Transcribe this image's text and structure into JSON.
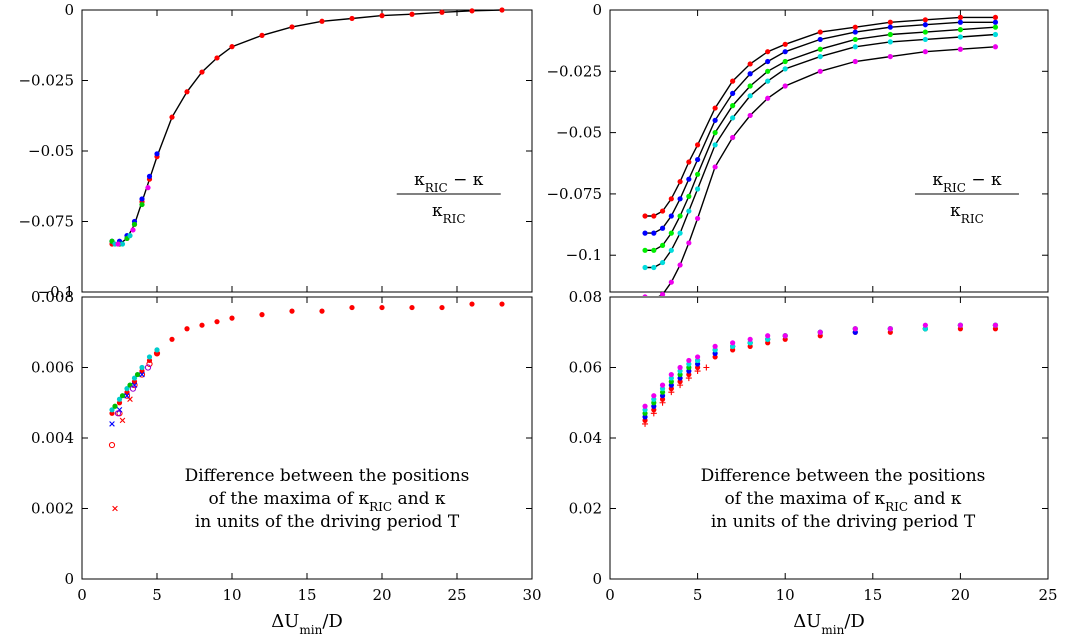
{
  "chart_data": [
    {
      "panel": "top-left",
      "type": "scatter",
      "xlim": [
        0,
        30
      ],
      "ylim": [
        -0.1,
        0
      ],
      "yticks": [
        "-0.1",
        "-0.075",
        "-0.05",
        "-0.025",
        "0"
      ],
      "annotation": {
        "numerator": "κ_RIC − κ",
        "denominator": "κ_RIC"
      },
      "series": [
        {
          "color": "#ff0000",
          "marker": "circle",
          "line": true,
          "x": [
            2,
            2.5,
            3,
            3.5,
            4,
            4.5,
            5,
            6,
            7,
            8,
            9,
            10,
            12,
            14,
            16,
            18,
            20,
            22,
            24,
            26,
            28
          ],
          "y": [
            -0.083,
            -0.083,
            -0.081,
            -0.076,
            -0.068,
            -0.06,
            -0.052,
            -0.038,
            -0.029,
            -0.022,
            -0.017,
            -0.013,
            -0.009,
            -0.006,
            -0.004,
            -0.003,
            -0.002,
            -0.0015,
            -0.0008,
            -0.0003,
            0
          ]
        },
        {
          "color": "#0000ff",
          "marker": "circle",
          "x": [
            2,
            2.5,
            3,
            3.5,
            4,
            4.5,
            5
          ],
          "y": [
            -0.082,
            -0.082,
            -0.08,
            -0.075,
            -0.067,
            -0.059,
            -0.051
          ]
        },
        {
          "color": "#00cc00",
          "marker": "circle",
          "x": [
            2,
            2.5,
            3,
            3.5,
            4
          ],
          "y": [
            -0.082,
            -0.083,
            -0.081,
            -0.076,
            -0.069
          ]
        },
        {
          "color": "#00cccc",
          "marker": "circle",
          "x": [
            2.2,
            2.7,
            3.2
          ],
          "y": [
            -0.083,
            -0.083,
            -0.08
          ]
        },
        {
          "color": "#ee00ee",
          "marker": "circle",
          "x": [
            2.4,
            3.4,
            4.4
          ],
          "y": [
            -0.083,
            -0.078,
            -0.063
          ]
        }
      ]
    },
    {
      "panel": "top-right",
      "type": "scatter",
      "xlim": [
        0,
        25
      ],
      "ylim": [
        -0.115,
        0
      ],
      "yticks": [
        "-0.1",
        "-0.075",
        "-0.05",
        "-0.025",
        "0"
      ],
      "annotation": {
        "numerator": "κ_RIC − κ",
        "denominator": "κ_RIC"
      },
      "series": [
        {
          "color": "#ff0000",
          "marker": "circle",
          "line": true,
          "x": [
            2,
            2.5,
            3,
            3.5,
            4,
            4.5,
            5,
            6,
            7,
            8,
            9,
            10,
            12,
            14,
            16,
            18,
            20,
            22
          ],
          "y": [
            -0.084,
            -0.084,
            -0.082,
            -0.077,
            -0.07,
            -0.062,
            -0.055,
            -0.04,
            -0.029,
            -0.022,
            -0.017,
            -0.014,
            -0.009,
            -0.007,
            -0.005,
            -0.004,
            -0.003,
            -0.003
          ]
        },
        {
          "color": "#0000ff",
          "marker": "circle",
          "line": true,
          "x": [
            2,
            2.5,
            3,
            3.5,
            4,
            4.5,
            5,
            6,
            7,
            8,
            9,
            10,
            12,
            14,
            16,
            18,
            20,
            22
          ],
          "y": [
            -0.091,
            -0.091,
            -0.089,
            -0.084,
            -0.077,
            -0.069,
            -0.061,
            -0.045,
            -0.034,
            -0.026,
            -0.021,
            -0.017,
            -0.012,
            -0.009,
            -0.007,
            -0.006,
            -0.005,
            -0.005
          ]
        },
        {
          "color": "#00ee00",
          "marker": "circle",
          "line": true,
          "x": [
            2,
            2.5,
            3,
            3.5,
            4,
            4.5,
            5,
            6,
            7,
            8,
            9,
            10,
            12,
            14,
            16,
            18,
            20,
            22
          ],
          "y": [
            -0.098,
            -0.098,
            -0.096,
            -0.091,
            -0.084,
            -0.076,
            -0.067,
            -0.05,
            -0.039,
            -0.031,
            -0.025,
            -0.021,
            -0.016,
            -0.012,
            -0.01,
            -0.009,
            -0.008,
            -0.007
          ]
        },
        {
          "color": "#00dddd",
          "marker": "circle",
          "line": true,
          "x": [
            2,
            2.5,
            3,
            3.5,
            4,
            4.5,
            5,
            6,
            7,
            8,
            9,
            10,
            12,
            14,
            16,
            18,
            20,
            22
          ],
          "y": [
            -0.105,
            -0.105,
            -0.103,
            -0.098,
            -0.091,
            -0.082,
            -0.073,
            -0.055,
            -0.044,
            -0.035,
            -0.029,
            -0.024,
            -0.019,
            -0.015,
            -0.013,
            -0.012,
            -0.011,
            -0.01
          ]
        },
        {
          "color": "#ee00ee",
          "marker": "circle",
          "line": true,
          "x": [
            2,
            2.5,
            3,
            3.5,
            4,
            4.5,
            5,
            6,
            7,
            8,
            9,
            10,
            12,
            14,
            16,
            18,
            20,
            22
          ],
          "y": [
            -0.117,
            -0.118,
            -0.116,
            -0.111,
            -0.104,
            -0.095,
            -0.085,
            -0.064,
            -0.052,
            -0.043,
            -0.036,
            -0.031,
            -0.025,
            -0.021,
            -0.019,
            -0.017,
            -0.016,
            -0.015
          ]
        }
      ]
    },
    {
      "panel": "bottom-left",
      "type": "scatter",
      "xlim": [
        0,
        30
      ],
      "ylim": [
        0,
        0.008
      ],
      "xticks": [
        "0",
        "5",
        "10",
        "15",
        "20",
        "25",
        "30"
      ],
      "yticks": [
        "0",
        "0.002",
        "0.004",
        "0.006",
        "0.008"
      ],
      "xlabel": "ΔU_min/D",
      "annotation_lines": [
        "Difference between the positions",
        "of the maxima of κ_RIC and κ",
        "in units of the driving period T"
      ],
      "series": [
        {
          "color": "#ff0000",
          "marker": "circle",
          "x": [
            2,
            2.5,
            3,
            3.5,
            4,
            4.5,
            5,
            6,
            7,
            8,
            9,
            10,
            12,
            14,
            16,
            18,
            20,
            22,
            24,
            26,
            28
          ],
          "y": [
            0.0047,
            0.005,
            0.0053,
            0.0056,
            0.0059,
            0.0062,
            0.0064,
            0.0068,
            0.0071,
            0.0072,
            0.0073,
            0.0074,
            0.0075,
            0.0076,
            0.0076,
            0.0077,
            0.0077,
            0.0077,
            0.0077,
            0.0078,
            0.0078
          ]
        },
        {
          "color": "#ff0000",
          "marker": "open-circle",
          "x": [
            2,
            2.5,
            3,
            3.5,
            4,
            4.5,
            5
          ],
          "y": [
            0.0038,
            0.0047,
            0.0052,
            0.0055,
            0.0058,
            0.0061,
            0.0064
          ]
        },
        {
          "color": "#ff0000",
          "marker": "cross",
          "x": [
            2.2,
            2.7,
            3.2
          ],
          "y": [
            0.002,
            0.0045,
            0.0051
          ]
        },
        {
          "color": "#0000ff",
          "marker": "cross",
          "x": [
            2,
            2.5,
            3,
            3.5,
            4
          ],
          "y": [
            0.0044,
            0.0048,
            0.0052,
            0.0055,
            0.0058
          ]
        },
        {
          "color": "#00cccc",
          "marker": "circle",
          "x": [
            2,
            2.5,
            3,
            3.5,
            4,
            4.5,
            5
          ],
          "y": [
            0.0048,
            0.0051,
            0.0054,
            0.0057,
            0.006,
            0.0063,
            0.0065
          ]
        },
        {
          "color": "#00bb00",
          "marker": "circle",
          "x": [
            2.2,
            2.7,
            3.2,
            3.7
          ],
          "y": [
            0.0049,
            0.0052,
            0.0055,
            0.0058
          ]
        },
        {
          "color": "#9900cc",
          "marker": "open-circle",
          "x": [
            2.4,
            3.4,
            4.4
          ],
          "y": [
            0.0047,
            0.0054,
            0.006
          ]
        }
      ]
    },
    {
      "panel": "bottom-right",
      "type": "scatter",
      "xlim": [
        0,
        25
      ],
      "ylim": [
        0,
        0.08
      ],
      "xticks": [
        "0",
        "5",
        "10",
        "15",
        "20",
        "25"
      ],
      "yticks": [
        "0",
        "0.02",
        "0.04",
        "0.06",
        "0.08"
      ],
      "xlabel": "ΔU_min/D",
      "annotation_lines": [
        "Difference between the positions",
        "of the maxima of κ_RIC and κ",
        "in units of the driving period T"
      ],
      "series": [
        {
          "color": "#ff0000",
          "marker": "plus",
          "x": [
            2,
            2.5,
            3,
            3.5,
            4,
            4.5,
            5,
            5.5
          ],
          "y": [
            0.044,
            0.047,
            0.05,
            0.053,
            0.055,
            0.057,
            0.059,
            0.06
          ]
        },
        {
          "color": "#ff0000",
          "marker": "circle",
          "x": [
            2,
            2.5,
            3,
            3.5,
            4,
            4.5,
            5,
            6,
            7,
            8,
            9,
            10,
            12,
            14,
            16,
            18,
            20,
            22
          ],
          "y": [
            0.045,
            0.048,
            0.051,
            0.054,
            0.056,
            0.058,
            0.06,
            0.063,
            0.065,
            0.066,
            0.067,
            0.068,
            0.069,
            0.07,
            0.07,
            0.071,
            0.071,
            0.071
          ]
        },
        {
          "color": "#0000ff",
          "marker": "circle",
          "x": [
            2,
            2.5,
            3,
            3.5,
            4,
            4.5,
            5,
            6,
            7,
            8,
            9,
            10,
            12,
            14,
            16,
            18,
            20,
            22
          ],
          "y": [
            0.046,
            0.049,
            0.052,
            0.055,
            0.057,
            0.059,
            0.061,
            0.064,
            0.066,
            0.067,
            0.068,
            0.069,
            0.07,
            0.07,
            0.071,
            0.071,
            0.072,
            0.072
          ]
        },
        {
          "color": "#00cc00",
          "marker": "circle",
          "x": [
            2,
            2.5,
            3,
            3.5,
            4,
            4.5,
            5,
            6,
            7,
            8,
            9,
            10,
            12,
            14,
            16,
            18,
            20,
            22
          ],
          "y": [
            0.047,
            0.05,
            0.053,
            0.056,
            0.058,
            0.06,
            0.062,
            0.065,
            0.066,
            0.067,
            0.068,
            0.069,
            0.07,
            0.071,
            0.071,
            0.071,
            0.072,
            0.072
          ]
        },
        {
          "color": "#00dddd",
          "marker": "circle",
          "x": [
            2,
            2.5,
            3,
            3.5,
            4,
            4.5,
            5,
            6,
            7,
            8,
            9,
            10,
            12,
            14,
            16,
            18,
            20,
            22
          ],
          "y": [
            0.048,
            0.051,
            0.054,
            0.057,
            0.059,
            0.061,
            0.062,
            0.065,
            0.066,
            0.067,
            0.068,
            0.069,
            0.07,
            0.071,
            0.071,
            0.071,
            0.072,
            0.072
          ]
        },
        {
          "color": "#ee00ee",
          "marker": "circle",
          "x": [
            2,
            2.5,
            3,
            3.5,
            4,
            4.5,
            5,
            6,
            7,
            8,
            9,
            10,
            12,
            14,
            16,
            18,
            20,
            22
          ],
          "y": [
            0.049,
            0.052,
            0.055,
            0.058,
            0.06,
            0.062,
            0.063,
            0.066,
            0.067,
            0.068,
            0.069,
            0.069,
            0.07,
            0.071,
            0.071,
            0.072,
            0.072,
            0.072
          ]
        }
      ]
    }
  ]
}
